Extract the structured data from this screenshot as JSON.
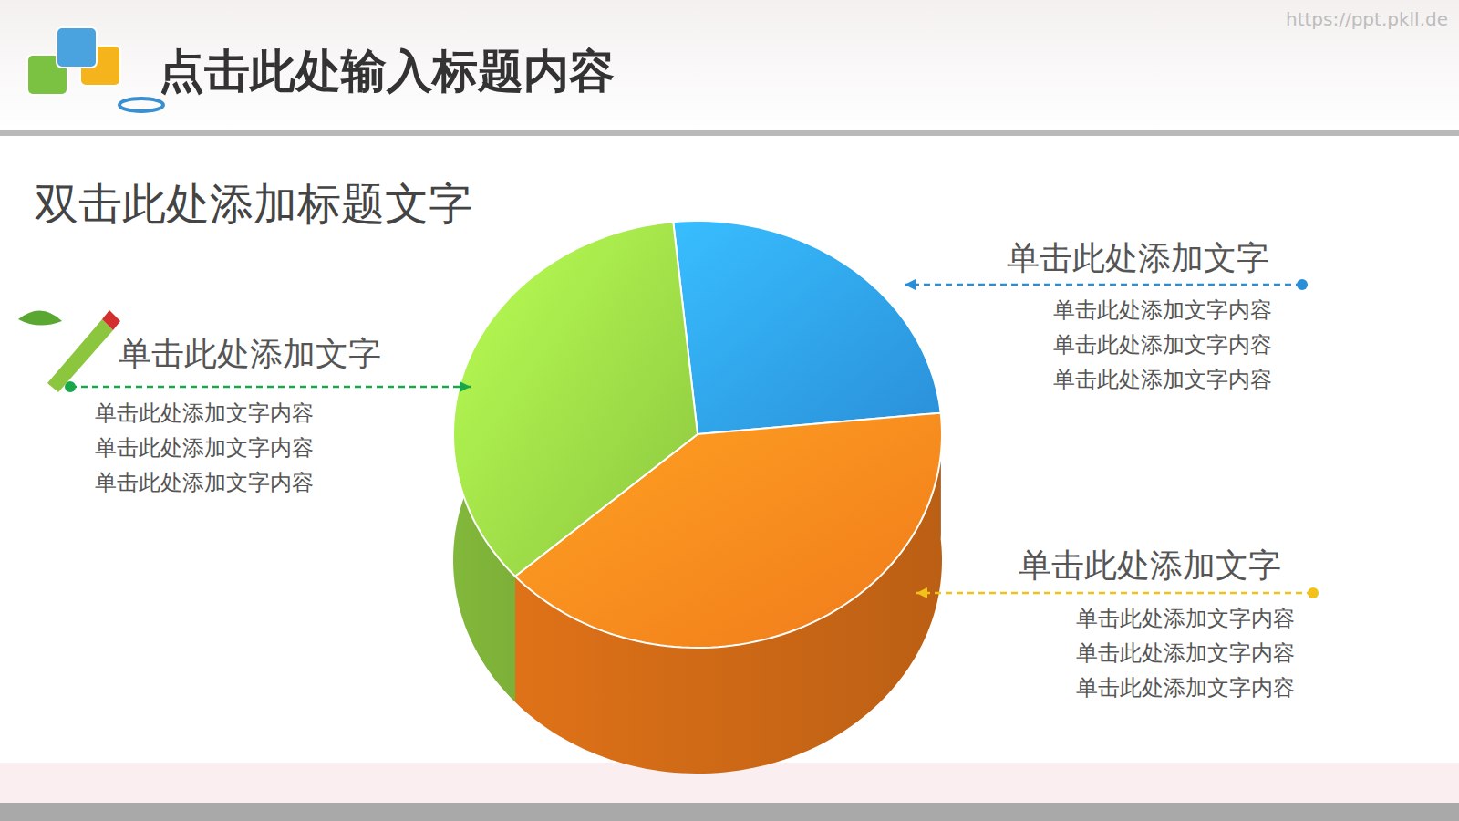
{
  "header": {
    "title": "点击此处输入标题内容",
    "watermark": "https://ppt.pkll.de"
  },
  "chart_data": {
    "type": "pie",
    "title": "双击此处添加标题文字",
    "categories": [
      "单击此处添加文字",
      "单击此处添加文字",
      "单击此处添加文字"
    ],
    "values": [
      25,
      40,
      35
    ],
    "colors": [
      "#2a8fd8",
      "#f07a1a",
      "#8cc63f"
    ],
    "annotations": [
      [
        "单击此处添加文字内容",
        "单击此处添加文字内容",
        "单击此处添加文字内容"
      ],
      [
        "单击此处添加文字内容",
        "单击此处添加文字内容",
        "单击此处添加文字内容"
      ],
      [
        "单击此处添加文字内容",
        "单击此处添加文字内容",
        "单击此处添加文字内容"
      ]
    ]
  }
}
